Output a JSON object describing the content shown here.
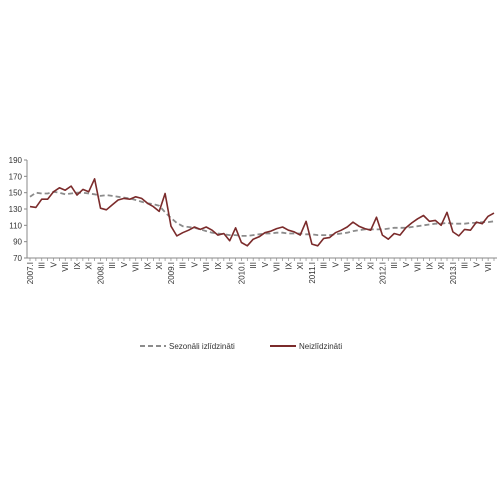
{
  "chart_data": {
    "type": "line",
    "ylim": [
      70,
      190
    ],
    "yticks": [
      70,
      90,
      110,
      130,
      150,
      170,
      190
    ],
    "x_tick_labels": [
      "2007.I",
      "III",
      "V",
      "VII",
      "IX",
      "XI",
      "2008.I",
      "III",
      "V",
      "VII",
      "IX",
      "XI",
      "2009.I",
      "III",
      "V",
      "VII",
      "IX",
      "XI",
      "2010.I",
      "III",
      "V",
      "VII",
      "IX",
      "XI",
      "2011.I",
      "III",
      "V",
      "VII",
      "IX",
      "XI",
      "2012.I",
      "III",
      "V",
      "VII",
      "IX",
      "XI",
      "2013.I",
      "III",
      "V",
      "VII"
    ],
    "grid": false,
    "legend_position": "bottom",
    "series": [
      {
        "name": "Sezonāli izlīdzināti",
        "color": "#8c8c8c",
        "style": "dashed",
        "values": [
          145,
          150,
          149,
          149,
          151,
          150,
          148,
          149,
          150,
          150,
          149,
          148,
          146,
          147,
          146,
          145,
          144,
          143,
          141,
          139,
          137,
          136,
          134,
          126,
          119,
          113,
          109,
          108,
          107,
          105,
          103,
          101,
          100,
          99,
          98,
          98,
          97,
          97,
          98,
          99,
          100,
          100,
          101,
          101,
          100,
          100,
          100,
          99,
          99,
          98,
          98,
          98,
          99,
          100,
          101,
          103,
          104,
          105,
          105,
          105,
          105,
          106,
          107,
          107,
          107,
          108,
          109,
          110,
          111,
          112,
          112,
          113,
          112,
          112,
          112,
          113,
          113,
          114,
          114,
          115
        ]
      },
      {
        "name": "Neizlīdzināti",
        "color": "#7b2b2b",
        "style": "solid",
        "values": [
          133,
          132,
          142,
          142,
          151,
          156,
          153,
          158,
          147,
          154,
          151,
          167,
          131,
          129,
          135,
          141,
          143,
          142,
          145,
          143,
          137,
          133,
          127,
          149,
          109,
          97,
          101,
          104,
          108,
          105,
          108,
          104,
          98,
          100,
          91,
          107,
          89,
          85,
          93,
          96,
          101,
          103,
          106,
          108,
          104,
          102,
          98,
          115,
          87,
          85,
          94,
          95,
          101,
          104,
          108,
          114,
          109,
          106,
          104,
          120,
          98,
          93,
          100,
          98,
          107,
          113,
          118,
          122,
          115,
          116,
          110,
          126,
          102,
          97,
          105,
          104,
          114,
          112,
          121,
          125
        ]
      }
    ]
  }
}
